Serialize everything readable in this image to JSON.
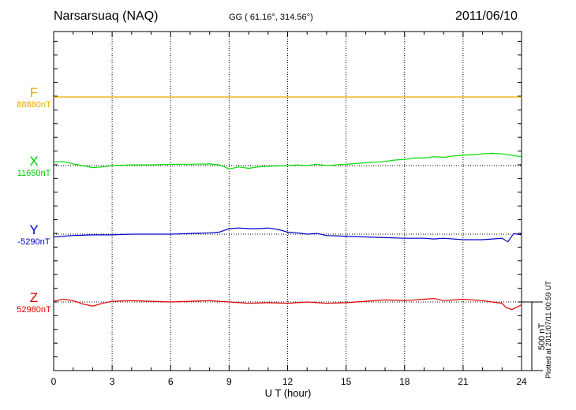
{
  "header": {
    "station": "Narsarsuaq (NAQ)",
    "coords": "GG ( 61.16°, 314.56°)",
    "date": "2011/06/10"
  },
  "plotted_note": "Plotted at 2011/07/11 00:59 UT",
  "scale_label": "500 nT",
  "colors": {
    "F": "#f0a800",
    "X": "#00dd00",
    "Y": "#0000cc",
    "Z": "#e00000"
  },
  "chart_data": {
    "type": "line",
    "xlabel": "U T (hour)",
    "xlim": [
      0,
      24
    ],
    "x_ticks": [
      "0",
      "3",
      "6",
      "9",
      "12",
      "15",
      "18",
      "21",
      "24"
    ],
    "y_units": "nT",
    "scale_bar_nT": 500,
    "series": [
      {
        "name": "F",
        "baseline_label": "88880nT",
        "baseline_nT": 88880,
        "x": [
          0,
          6,
          12,
          18,
          24
        ],
        "values": [
          0,
          0,
          0,
          0,
          0
        ]
      },
      {
        "name": "X",
        "baseline_label": "11650nT",
        "baseline_nT": 11650,
        "x": [
          0,
          0.5,
          1,
          1.5,
          2,
          2.5,
          3,
          4,
          5,
          6,
          7,
          8,
          8.5,
          9,
          9.5,
          10,
          10.5,
          11,
          12,
          12.5,
          13,
          13.5,
          14,
          15,
          16,
          16.5,
          17,
          17.5,
          18,
          18.5,
          19,
          19.5,
          20,
          20.5,
          21,
          21.5,
          22,
          22.5,
          23,
          23.5,
          24
        ],
        "values": [
          25,
          30,
          12,
          0,
          -15,
          -10,
          0,
          5,
          5,
          10,
          10,
          12,
          5,
          -25,
          -10,
          -20,
          -10,
          -5,
          0,
          5,
          0,
          10,
          0,
          10,
          20,
          25,
          30,
          40,
          45,
          55,
          55,
          65,
          60,
          70,
          75,
          80,
          85,
          90,
          85,
          75,
          65
        ]
      },
      {
        "name": "Y",
        "baseline_label": "-5290nT",
        "baseline_nT": -5290,
        "x": [
          0,
          1,
          2,
          3,
          4,
          5,
          6,
          7,
          8,
          8.5,
          9,
          9.5,
          10,
          10.5,
          11,
          11.5,
          12,
          12.5,
          13,
          13.5,
          14,
          15,
          16,
          17,
          18,
          19,
          19.5,
          20,
          21,
          22,
          23,
          23.3,
          23.6,
          24
        ],
        "values": [
          -20,
          -10,
          -5,
          -5,
          0,
          0,
          0,
          5,
          10,
          15,
          40,
          45,
          40,
          40,
          45,
          35,
          15,
          10,
          0,
          5,
          -10,
          -15,
          -20,
          -25,
          -30,
          -30,
          -35,
          -30,
          -40,
          -40,
          -30,
          -55,
          5,
          -5
        ]
      },
      {
        "name": "Z",
        "baseline_label": "52980nT",
        "baseline_nT": 52980,
        "x": [
          0,
          0.5,
          1,
          1.5,
          2,
          2.5,
          3,
          4,
          5,
          6,
          7,
          8,
          9,
          10,
          11,
          12,
          13,
          14,
          15,
          16,
          17,
          18,
          19,
          19.5,
          20,
          21,
          22,
          22.5,
          23,
          23.2,
          23.5,
          23.8,
          24
        ],
        "values": [
          5,
          20,
          10,
          -15,
          -30,
          -10,
          5,
          10,
          5,
          0,
          5,
          10,
          0,
          -10,
          -5,
          -10,
          0,
          -10,
          -5,
          5,
          15,
          10,
          20,
          25,
          10,
          20,
          10,
          0,
          -10,
          -40,
          -55,
          -35,
          -20
        ]
      }
    ]
  }
}
